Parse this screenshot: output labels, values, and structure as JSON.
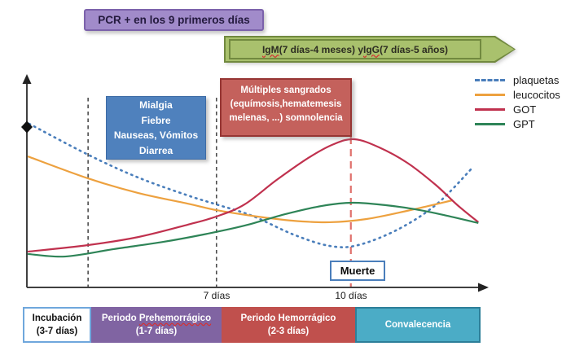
{
  "pcr_banner": {
    "label": "PCR + en los 9 primeros días",
    "bg": "#a18bca",
    "border": "#7c62ab",
    "text_color": "#241a3e"
  },
  "serology_arrow": {
    "parts": [
      {
        "text": "IgM",
        "misspelled": true
      },
      {
        "text": " (7 días-4 meses) y "
      },
      {
        "text": "IgG",
        "misspelled": true
      },
      {
        "text": " (7 días-5 años)"
      }
    ],
    "bg": "#a9c16d",
    "border": "#71893f"
  },
  "symptom_box": {
    "lines": [
      "Mialgia",
      "Fiebre",
      "Nauseas, Vómitos",
      "Diarrea"
    ],
    "bg": "#4f81bd",
    "border": "#3d6ba5"
  },
  "bleeding_box": {
    "lines": [
      "Múltiples sangrados",
      "(equímosis,hematemesis",
      "melenas, ...) somnolencia"
    ],
    "bg": "#c4615c",
    "border": "#963634"
  },
  "death_label": {
    "label": "Muerte",
    "border": "#4a7ebb"
  },
  "timeline": {
    "bars": [
      {
        "line1": "Incubación",
        "line2": "(3-7 días)",
        "bg": "#ffffff",
        "border": "#6fa7dc",
        "text_color": "#111111"
      },
      {
        "line1_prefix": "Periodo ",
        "line1_misspelled": "Prehemorrágico",
        "line2": "(1-7 días)",
        "bg": "#8064a2",
        "border": "#8064a2",
        "text_color": "#ffffff"
      },
      {
        "line1": "Periodo Hemorrágico",
        "line2": "(2-3 días)",
        "bg": "#c0504d",
        "border": "#c0504d",
        "text_color": "#ffffff"
      },
      {
        "line1": "Convalecencia",
        "bg": "#4bacc6",
        "border": "#2d7f99",
        "text_color": "#ffffff"
      }
    ]
  },
  "chart_data": {
    "type": "line",
    "description": "Curso esquemático de la enfermedad: evolución cualitativa de parámetros analíticos a lo largo de los periodos clínicos (sin escala numérica en el eje y).",
    "axes": {
      "x_ticks": [
        {
          "label": "7 días",
          "x_pct": 41.2
        },
        {
          "label": "10 días",
          "x_pct": 70.4
        }
      ],
      "y_axis_unlabeled": true,
      "grid": false
    },
    "legend_position": "top-right",
    "series": [
      {
        "name": "plaquetas",
        "color": "#4a7ebb",
        "style": "dotted",
        "points_pct": [
          [
            0.5,
            77.3
          ],
          [
            13.3,
            62.7
          ],
          [
            24.2,
            51.9
          ],
          [
            34.9,
            43.5
          ],
          [
            41.2,
            39.2
          ],
          [
            49.0,
            33.8
          ],
          [
            57.9,
            25.0
          ],
          [
            65.8,
            19.6
          ],
          [
            72.0,
            20.0
          ],
          [
            80.9,
            27.7
          ],
          [
            89.2,
            39.6
          ],
          [
            96.8,
            56.5
          ]
        ]
      },
      {
        "name": "leucocitos",
        "color": "#eda13f",
        "style": "solid",
        "points_pct": [
          [
            0.2,
            61.9
          ],
          [
            13.3,
            51.5
          ],
          [
            24.2,
            44.6
          ],
          [
            34.9,
            39.6
          ],
          [
            41.2,
            36.5
          ],
          [
            49.0,
            33.8
          ],
          [
            57.9,
            31.5
          ],
          [
            65.8,
            30.8
          ],
          [
            73.8,
            32.3
          ],
          [
            82.7,
            36.2
          ],
          [
            92.6,
            41.2
          ]
        ]
      },
      {
        "name": "GOT",
        "color": "#c0314e",
        "style": "solid",
        "points_pct": [
          [
            0.2,
            16.9
          ],
          [
            13.3,
            20.0
          ],
          [
            24.2,
            23.8
          ],
          [
            34.9,
            29.6
          ],
          [
            41.2,
            33.5
          ],
          [
            47.3,
            39.2
          ],
          [
            54.3,
            50.8
          ],
          [
            61.4,
            61.5
          ],
          [
            66.7,
            67.7
          ],
          [
            71.2,
            70.0
          ],
          [
            76.5,
            66.2
          ],
          [
            82.7,
            58.8
          ],
          [
            88.8,
            48.5
          ],
          [
            93.6,
            38.8
          ],
          [
            98.1,
            30.8
          ]
        ]
      },
      {
        "name": "GPT",
        "color": "#2e8457",
        "style": "solid",
        "points_pct": [
          [
            0.2,
            15.8
          ],
          [
            8.3,
            14.6
          ],
          [
            18.9,
            18.1
          ],
          [
            29.6,
            21.5
          ],
          [
            38.4,
            25.0
          ],
          [
            47.3,
            29.2
          ],
          [
            56.1,
            34.6
          ],
          [
            64.1,
            38.5
          ],
          [
            70.8,
            40.0
          ],
          [
            78.2,
            38.8
          ],
          [
            84.4,
            36.9
          ],
          [
            90.6,
            34.2
          ],
          [
            98.1,
            30.4
          ]
        ]
      }
    ],
    "landmarks": [
      {
        "name": "fin-incubacion",
        "x_pct": 13.3,
        "style": "dashed",
        "color": "#4d4d4d"
      },
      {
        "name": "7-dias",
        "x_pct": 41.2,
        "style": "dashed",
        "color": "#4d4d4d"
      },
      {
        "name": "10-dias-muerte",
        "x_pct": 70.4,
        "style": "dashed",
        "color": "#e0716c"
      }
    ],
    "start_marker": {
      "shape": "diamond",
      "color": "#111111",
      "series": "plaquetas"
    }
  }
}
